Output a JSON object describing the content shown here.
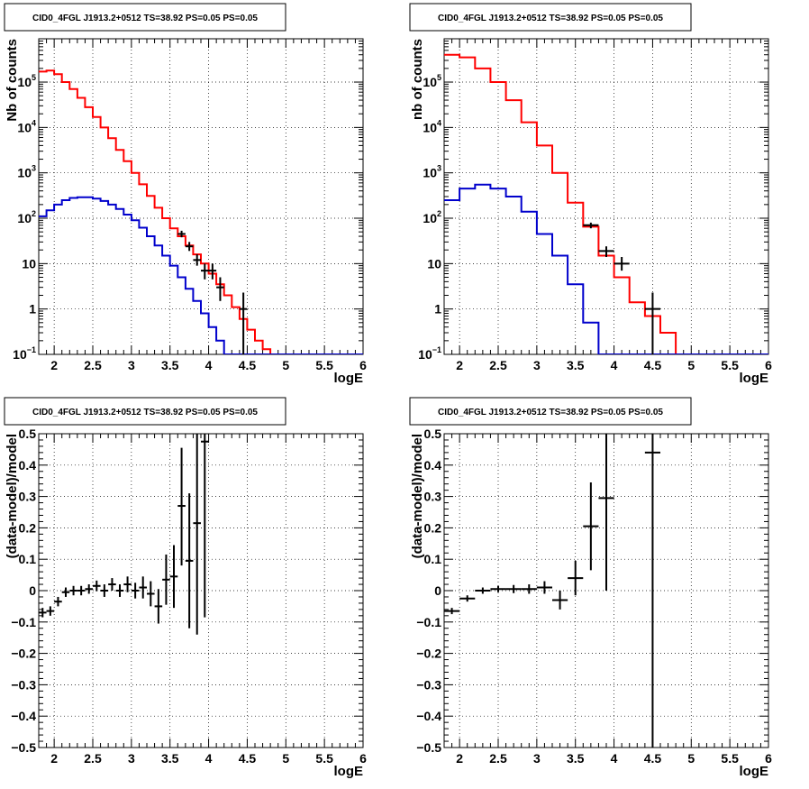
{
  "colors": {
    "data": "#000000",
    "total_model": "#ff0000",
    "source_model": "#0000cc",
    "grid": "#000000"
  },
  "chart_data": [
    {
      "type": "line",
      "title": "CID0_4FGL J1913.2+0512 TS=38.92 PS=0.05 PS=0.05",
      "xlabel": "logE",
      "ylabel": "Nb of counts",
      "xlim": [
        1.8,
        6.0
      ],
      "ylim": [
        0.1,
        900000
      ],
      "log_y": true,
      "grid": true,
      "x_ticks": [
        2,
        2.5,
        3,
        3.5,
        4,
        4.5,
        5,
        5.5,
        6
      ],
      "x_tick_labels": [
        "2",
        "2.5",
        "3",
        "3.5",
        "4",
        "4.5",
        "5",
        "5.5",
        "6"
      ],
      "y_ticks": [
        0.1,
        1,
        10,
        100,
        1000,
        10000,
        100000
      ],
      "y_tick_labels": [
        {
          "base": "10",
          "exp": "−1"
        },
        {
          "base": "1",
          "exp": ""
        },
        {
          "base": "10",
          "exp": ""
        },
        {
          "base": "10",
          "exp": "2"
        },
        {
          "base": "10",
          "exp": "3"
        },
        {
          "base": "10",
          "exp": "4"
        },
        {
          "base": "10",
          "exp": "5"
        }
      ],
      "series": [
        {
          "role": "total_model",
          "edges": [
            1.8,
            1.9,
            2.0,
            2.1,
            2.2,
            2.3,
            2.4,
            2.5,
            2.6,
            2.7,
            2.8,
            2.9,
            3.0,
            3.1,
            3.2,
            3.3,
            3.4,
            3.5,
            3.6,
            3.7,
            3.8,
            3.9,
            4.0,
            4.1,
            4.2,
            4.3,
            4.4,
            4.5,
            4.6,
            4.7,
            4.8,
            4.9,
            5.0,
            5.1,
            5.2,
            5.3,
            5.4,
            5.5,
            5.6,
            5.7,
            5.8,
            5.9,
            6.0
          ],
          "values": [
            170000,
            180000,
            150000,
            100000,
            70000,
            45000,
            28000,
            17000,
            10000,
            5800,
            3200,
            1800,
            1000,
            560,
            310,
            170,
            100,
            60,
            40,
            25,
            16,
            10,
            6,
            3.5,
            2.0,
            1.1,
            0.6,
            0.35,
            0.2,
            0.13,
            0.1,
            0.1,
            0.1,
            0.1,
            0.1,
            0.1,
            0.1,
            0.1,
            0.1,
            0.1,
            0.1,
            0.1
          ]
        },
        {
          "role": "source_model",
          "edges": [
            1.8,
            1.9,
            2.0,
            2.1,
            2.2,
            2.3,
            2.4,
            2.5,
            2.6,
            2.7,
            2.8,
            2.9,
            3.0,
            3.1,
            3.2,
            3.3,
            3.4,
            3.5,
            3.6,
            3.7,
            3.8,
            3.9,
            4.0,
            4.1,
            4.2,
            4.3,
            4.4,
            4.5,
            4.6,
            4.7,
            4.8,
            4.9,
            5.0,
            5.1,
            5.2,
            5.3,
            5.4,
            5.5,
            5.6,
            5.7,
            5.8,
            5.9,
            6.0
          ],
          "values": [
            110,
            150,
            200,
            250,
            280,
            290,
            290,
            270,
            240,
            200,
            160,
            120,
            90,
            62,
            40,
            25,
            15,
            9,
            5,
            2.8,
            1.5,
            0.8,
            0.4,
            0.2,
            0.1,
            0.1,
            0.1,
            0.1,
            0.1,
            0.1,
            0.1,
            0.1,
            0.1,
            0.1,
            0.1,
            0.1,
            0.1,
            0.1,
            0.1,
            0.1,
            0.1,
            0.1
          ]
        }
      ],
      "points": [
        {
          "x": 3.65,
          "y": 45,
          "xerr": 0.05,
          "ylo": 38,
          "yhi": 53
        },
        {
          "x": 3.75,
          "y": 24,
          "xerr": 0.05,
          "ylo": 19,
          "yhi": 30
        },
        {
          "x": 3.85,
          "y": 12,
          "xerr": 0.05,
          "ylo": 9,
          "yhi": 16
        },
        {
          "x": 3.95,
          "y": 7,
          "xerr": 0.05,
          "ylo": 4.5,
          "yhi": 10
        },
        {
          "x": 4.05,
          "y": 7,
          "xerr": 0.05,
          "ylo": 4.5,
          "yhi": 10
        },
        {
          "x": 4.15,
          "y": 3,
          "xerr": 0.05,
          "ylo": 1.5,
          "yhi": 5
        },
        {
          "x": 4.45,
          "y": 1,
          "xerr": 0.05,
          "ylo": 0.1,
          "yhi": 2.3
        }
      ]
    },
    {
      "type": "line",
      "title": "CID0_4FGL J1913.2+0512 TS=38.92 PS=0.05 PS=0.05",
      "xlabel": "logE",
      "ylabel": "nb of counts",
      "xlim": [
        1.8,
        6.0
      ],
      "ylim": [
        0.1,
        900000
      ],
      "log_y": true,
      "grid": true,
      "x_ticks": [
        2,
        2.5,
        3,
        3.5,
        4,
        4.5,
        5,
        5.5,
        6
      ],
      "x_tick_labels": [
        "2",
        "2.5",
        "3",
        "3.5",
        "4",
        "4.5",
        "5",
        "5.5",
        "6"
      ],
      "y_ticks": [
        0.1,
        1,
        10,
        100,
        1000,
        10000,
        100000
      ],
      "y_tick_labels": [
        {
          "base": "10",
          "exp": "−1"
        },
        {
          "base": "1",
          "exp": ""
        },
        {
          "base": "10",
          "exp": ""
        },
        {
          "base": "10",
          "exp": "2"
        },
        {
          "base": "10",
          "exp": "3"
        },
        {
          "base": "10",
          "exp": "4"
        },
        {
          "base": "10",
          "exp": "5"
        }
      ],
      "series": [
        {
          "role": "total_model",
          "edges": [
            1.8,
            2.0,
            2.2,
            2.4,
            2.6,
            2.8,
            3.0,
            3.2,
            3.4,
            3.6,
            3.8,
            4.0,
            4.2,
            4.4,
            4.6,
            4.8,
            5.0,
            5.2,
            5.4,
            5.6,
            5.8,
            6.0
          ],
          "values": [
            400000,
            350000,
            200000,
            100000,
            40000,
            13000,
            4000,
            1000,
            220,
            65,
            15,
            5,
            1.4,
            0.7,
            0.3,
            0.1,
            0.1,
            0.1,
            0.1,
            0.1,
            0.1
          ]
        },
        {
          "role": "source_model",
          "edges": [
            1.8,
            2.0,
            2.2,
            2.4,
            2.6,
            2.8,
            3.0,
            3.2,
            3.4,
            3.6,
            3.8,
            4.0,
            4.2,
            4.4,
            4.6,
            4.8,
            5.0,
            5.2,
            5.4,
            5.6,
            5.8,
            6.0
          ],
          "values": [
            250,
            450,
            550,
            450,
            300,
            140,
            45,
            15,
            3.5,
            0.5,
            0.1,
            0.1,
            0.1,
            0.1,
            0.1,
            0.1,
            0.1,
            0.1,
            0.1,
            0.1,
            0.1
          ]
        }
      ],
      "points": [
        {
          "x": 3.7,
          "y": 70,
          "xerr": 0.1,
          "ylo": 60,
          "yhi": 80
        },
        {
          "x": 3.9,
          "y": 19,
          "xerr": 0.1,
          "ylo": 14,
          "yhi": 24
        },
        {
          "x": 4.1,
          "y": 10,
          "xerr": 0.1,
          "ylo": 7,
          "yhi": 14
        },
        {
          "x": 4.5,
          "y": 1,
          "xerr": 0.1,
          "ylo": 0.1,
          "yhi": 2.3
        }
      ]
    },
    {
      "type": "scatter",
      "title": "CID0_4FGL J1913.2+0512 TS=38.92 PS=0.05 PS=0.05",
      "xlabel": "logE",
      "ylabel": "(data-model)/model",
      "xlim": [
        1.8,
        6.0
      ],
      "ylim": [
        -0.5,
        0.5
      ],
      "grid": true,
      "x_ticks": [
        2,
        2.5,
        3,
        3.5,
        4,
        4.5,
        5,
        5.5,
        6
      ],
      "x_tick_labels": [
        "2",
        "2.5",
        "3",
        "3.5",
        "4",
        "4.5",
        "5",
        "5.5",
        "6"
      ],
      "y_ticks": [
        -0.5,
        -0.4,
        -0.3,
        -0.2,
        -0.1,
        0,
        0.1,
        0.2,
        0.3,
        0.4,
        0.5
      ],
      "y_tick_labels": [
        "−0.5",
        "−0.4",
        "−0.3",
        "−0.2",
        "−0.1",
        "0",
        "0.1",
        "0.2",
        "0.3",
        "0.4",
        "0.5"
      ],
      "points": [
        {
          "x": 1.85,
          "y": -0.07,
          "xerr": 0.05,
          "ylo": -0.085,
          "yhi": -0.055
        },
        {
          "x": 1.95,
          "y": -0.065,
          "xerr": 0.05,
          "ylo": -0.08,
          "yhi": -0.05
        },
        {
          "x": 2.05,
          "y": -0.035,
          "xerr": 0.05,
          "ylo": -0.05,
          "yhi": -0.02
        },
        {
          "x": 2.15,
          "y": -0.005,
          "xerr": 0.05,
          "ylo": -0.02,
          "yhi": 0.01
        },
        {
          "x": 2.25,
          "y": 0.0,
          "xerr": 0.05,
          "ylo": -0.015,
          "yhi": 0.015
        },
        {
          "x": 2.35,
          "y": 0.0,
          "xerr": 0.05,
          "ylo": -0.015,
          "yhi": 0.015
        },
        {
          "x": 2.45,
          "y": 0.005,
          "xerr": 0.05,
          "ylo": -0.01,
          "yhi": 0.02
        },
        {
          "x": 2.55,
          "y": 0.015,
          "xerr": 0.05,
          "ylo": -0.002,
          "yhi": 0.032
        },
        {
          "x": 2.65,
          "y": 0.0,
          "xerr": 0.05,
          "ylo": -0.02,
          "yhi": 0.02
        },
        {
          "x": 2.75,
          "y": 0.02,
          "xerr": 0.05,
          "ylo": 0.0,
          "yhi": 0.04
        },
        {
          "x": 2.85,
          "y": 0.0,
          "xerr": 0.05,
          "ylo": -0.02,
          "yhi": 0.02
        },
        {
          "x": 2.95,
          "y": 0.02,
          "xerr": 0.05,
          "ylo": -0.005,
          "yhi": 0.045
        },
        {
          "x": 3.05,
          "y": 0.0,
          "xerr": 0.05,
          "ylo": -0.025,
          "yhi": 0.025
        },
        {
          "x": 3.15,
          "y": 0.01,
          "xerr": 0.05,
          "ylo": -0.025,
          "yhi": 0.045
        },
        {
          "x": 3.25,
          "y": -0.01,
          "xerr": 0.05,
          "ylo": -0.05,
          "yhi": 0.03
        },
        {
          "x": 3.35,
          "y": -0.05,
          "xerr": 0.05,
          "ylo": -0.105,
          "yhi": 0.005
        },
        {
          "x": 3.45,
          "y": 0.035,
          "xerr": 0.05,
          "ylo": -0.045,
          "yhi": 0.115
        },
        {
          "x": 3.55,
          "y": 0.045,
          "xerr": 0.05,
          "ylo": -0.055,
          "yhi": 0.145
        },
        {
          "x": 3.65,
          "y": 0.27,
          "xerr": 0.05,
          "ylo": 0.08,
          "yhi": 0.455
        },
        {
          "x": 3.75,
          "y": 0.095,
          "xerr": 0.05,
          "ylo": -0.12,
          "yhi": 0.31
        },
        {
          "x": 3.85,
          "y": 0.215,
          "xerr": 0.05,
          "ylo": -0.14,
          "yhi": 0.5
        },
        {
          "x": 3.95,
          "y": 0.475,
          "xerr": 0.05,
          "ylo": -0.085,
          "yhi": 0.5
        }
      ]
    },
    {
      "type": "scatter",
      "title": "CID0_4FGL J1913.2+0512 TS=38.92 PS=0.05 PS=0.05",
      "xlabel": "logE",
      "ylabel": "(data-model)/model",
      "xlim": [
        1.8,
        6.0
      ],
      "ylim": [
        -0.5,
        0.5
      ],
      "grid": true,
      "x_ticks": [
        2,
        2.5,
        3,
        3.5,
        4,
        4.5,
        5,
        5.5,
        6
      ],
      "x_tick_labels": [
        "2",
        "2.5",
        "3",
        "3.5",
        "4",
        "4.5",
        "5",
        "5.5",
        "6"
      ],
      "y_ticks": [
        -0.5,
        -0.4,
        -0.3,
        -0.2,
        -0.1,
        0,
        0.1,
        0.2,
        0.3,
        0.4,
        0.5
      ],
      "y_tick_labels": [
        "−0.5",
        "−0.4",
        "−0.3",
        "−0.2",
        "−0.1",
        "0",
        "0.1",
        "0.2",
        "0.3",
        "0.4",
        "0.5"
      ],
      "points": [
        {
          "x": 1.9,
          "y": -0.065,
          "xerr": 0.1,
          "ylo": -0.075,
          "yhi": -0.055
        },
        {
          "x": 2.1,
          "y": -0.025,
          "xerr": 0.1,
          "ylo": -0.035,
          "yhi": -0.015
        },
        {
          "x": 2.3,
          "y": 0.0,
          "xerr": 0.1,
          "ylo": -0.01,
          "yhi": 0.01
        },
        {
          "x": 2.5,
          "y": 0.005,
          "xerr": 0.1,
          "ylo": -0.005,
          "yhi": 0.015
        },
        {
          "x": 2.7,
          "y": 0.005,
          "xerr": 0.1,
          "ylo": -0.008,
          "yhi": 0.018
        },
        {
          "x": 2.9,
          "y": 0.005,
          "xerr": 0.1,
          "ylo": -0.01,
          "yhi": 0.02
        },
        {
          "x": 3.1,
          "y": 0.01,
          "xerr": 0.1,
          "ylo": -0.01,
          "yhi": 0.03
        },
        {
          "x": 3.3,
          "y": -0.03,
          "xerr": 0.1,
          "ylo": -0.06,
          "yhi": 0.0
        },
        {
          "x": 3.5,
          "y": 0.04,
          "xerr": 0.1,
          "ylo": -0.015,
          "yhi": 0.095
        },
        {
          "x": 3.7,
          "y": 0.205,
          "xerr": 0.1,
          "ylo": 0.065,
          "yhi": 0.345
        },
        {
          "x": 3.9,
          "y": 0.295,
          "xerr": 0.1,
          "ylo": 0.0,
          "yhi": 0.5
        },
        {
          "x": 4.5,
          "y": 0.44,
          "xerr": 0.1,
          "ylo": -0.5,
          "yhi": 0.5
        }
      ]
    }
  ]
}
